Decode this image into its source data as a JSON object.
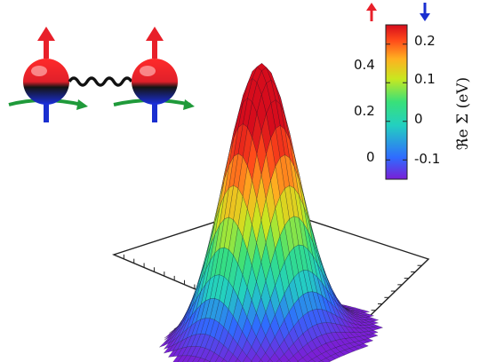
{
  "chart_data": {
    "type": "surface3d",
    "title": "",
    "surface_shape": "gaussian",
    "surface_z_range": [
      -0.15,
      0.5
    ],
    "z_axis": {
      "ticks": [
        {
          "value": 0.4,
          "label": "0.4"
        },
        {
          "value": 0.2,
          "label": "0.2"
        },
        {
          "value": 0.0,
          "label": "0"
        }
      ]
    },
    "colorbar": {
      "label": "ℜe Σ (eV)",
      "range": [
        -0.15,
        0.25
      ],
      "colormap": "rainbow",
      "colors": [
        "#7a1fd6",
        "#2f6bff",
        "#23d0c0",
        "#38e07a",
        "#c8e820",
        "#ffb020",
        "#ff4a1a",
        "#d60c1c"
      ],
      "ticks": [
        {
          "value": 0.2,
          "label": "0.2"
        },
        {
          "value": 0.1,
          "label": "0.1"
        },
        {
          "value": 0.0,
          "label": "0"
        },
        {
          "value": -0.1,
          "label": "-0.1"
        }
      ],
      "spin_up_symbol": "red-up-arrow",
      "spin_down_symbol": "blue-down-arrow"
    },
    "inset": {
      "description_icons": [
        "spin-up-sphere",
        "spring-coupling",
        "spin-up-sphere"
      ],
      "colors": {
        "up": "#e8202a",
        "down": "#1a2fd0",
        "rotation": "#1f9a3a",
        "spring": "#111111"
      }
    },
    "grid": false
  }
}
